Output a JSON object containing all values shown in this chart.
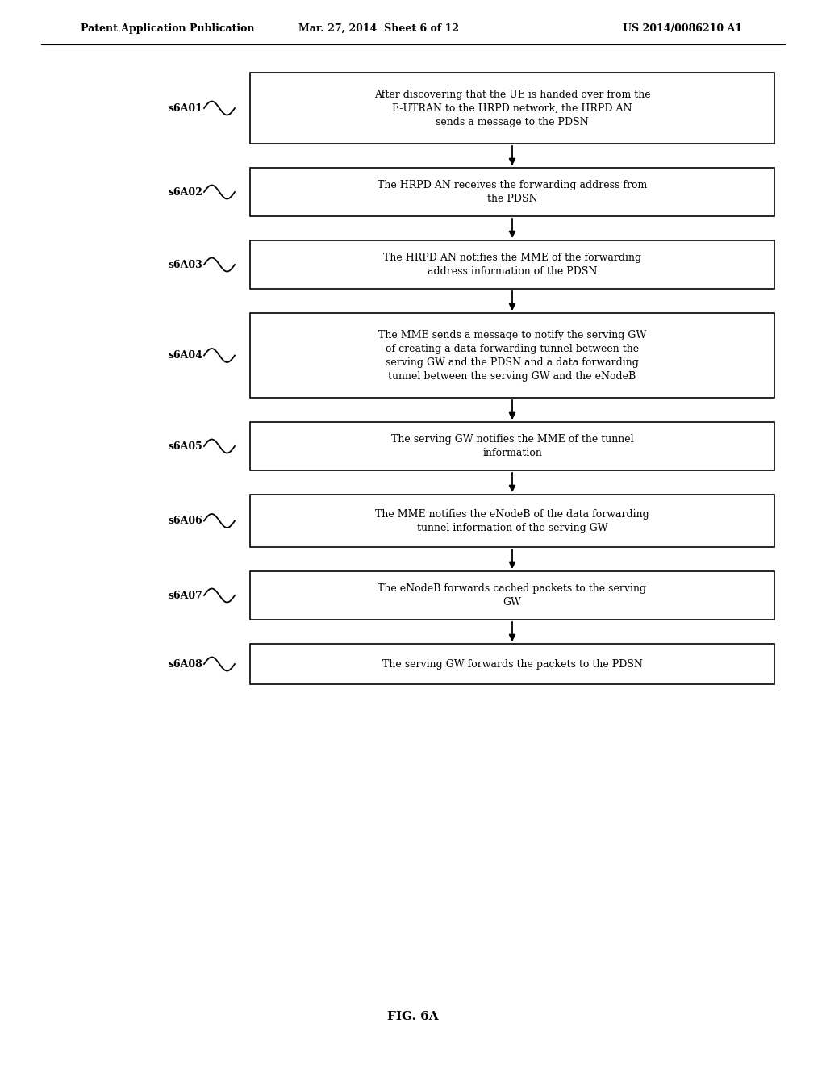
{
  "header_left": "Patent Application Publication",
  "header_mid": "Mar. 27, 2014  Sheet 6 of 12",
  "header_right": "US 2014/0086210 A1",
  "figure_label": "FIG. 6A",
  "background_color": "#ffffff",
  "box_color": "#ffffff",
  "box_edge_color": "#000000",
  "text_color": "#000000",
  "steps": [
    {
      "label": "s6A01",
      "text": "After discovering that the UE is handed over from the\nE-UTRAN to the HRPD network, the HRPD AN\nsends a message to the PDSN"
    },
    {
      "label": "s6A02",
      "text": "The HRPD AN receives the forwarding address from\nthe PDSN"
    },
    {
      "label": "s6A03",
      "text": "The HRPD AN notifies the MME of the forwarding\naddress information of the PDSN"
    },
    {
      "label": "s6A04",
      "text": "The MME sends a message to notify the serving GW\nof creating a data forwarding tunnel between the\nserving GW and the PDSN and a data forwarding\ntunnel between the serving GW and the eNodeB"
    },
    {
      "label": "s6A05",
      "text": "The serving GW notifies the MME of the tunnel\ninformation"
    },
    {
      "label": "s6A06",
      "text": "The MME notifies the eNodeB of the data forwarding\ntunnel information of the serving GW"
    },
    {
      "label": "s6A07",
      "text": "The eNodeB forwards cached packets to the serving\nGW"
    },
    {
      "label": "s6A08",
      "text": "The serving GW forwards the packets to the PDSN"
    }
  ]
}
